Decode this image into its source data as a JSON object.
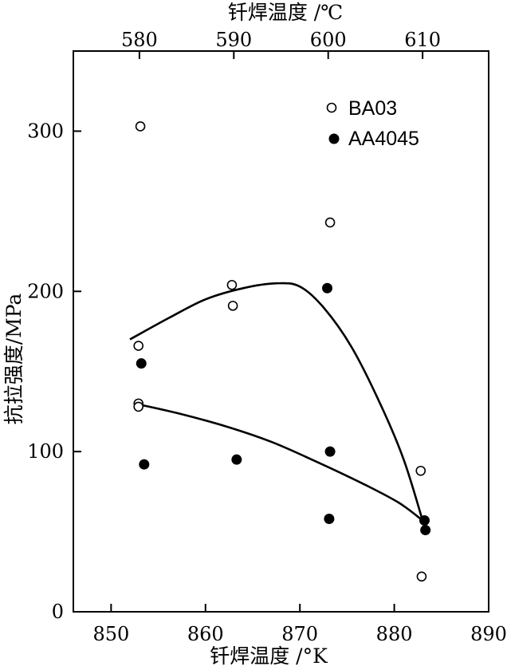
{
  "chart_data": {
    "type": "scatter",
    "title": "",
    "xlabel": "钎焊温度 /°K",
    "x2label": "钎焊温度 /℃",
    "ylabel": "抗拉强度/MPa",
    "xlim": [
      846,
      890
    ],
    "ylim": [
      0,
      350
    ],
    "x_ticks": [
      850,
      860,
      870,
      880,
      890
    ],
    "x2_ticks": [
      {
        "label": "580",
        "x": 853
      },
      {
        "label": "590",
        "x": 863
      },
      {
        "label": "600",
        "x": 873
      },
      {
        "label": "610",
        "x": 883
      }
    ],
    "y_ticks": [
      0,
      100,
      200,
      300
    ],
    "grid": false,
    "legend": "top-right",
    "series": [
      {
        "name": "BA03",
        "marker": "open-circle",
        "points": [
          {
            "x": 853.1,
            "y": 303
          },
          {
            "x": 852.9,
            "y": 166
          },
          {
            "x": 852.9,
            "y": 130
          },
          {
            "x": 852.9,
            "y": 128
          },
          {
            "x": 862.8,
            "y": 204
          },
          {
            "x": 862.9,
            "y": 191
          },
          {
            "x": 873.2,
            "y": 243
          },
          {
            "x": 882.8,
            "y": 88
          },
          {
            "x": 882.9,
            "y": 22
          }
        ],
        "curve": [
          {
            "x": 852.0,
            "y": 170
          },
          {
            "x": 856.0,
            "y": 183
          },
          {
            "x": 860.0,
            "y": 195
          },
          {
            "x": 864.0,
            "y": 202
          },
          {
            "x": 867.5,
            "y": 205
          },
          {
            "x": 870.0,
            "y": 203
          },
          {
            "x": 872.5,
            "y": 190
          },
          {
            "x": 875.5,
            "y": 165
          },
          {
            "x": 878.5,
            "y": 130
          },
          {
            "x": 881.0,
            "y": 95
          },
          {
            "x": 883.0,
            "y": 57
          }
        ]
      },
      {
        "name": "AA4045",
        "marker": "filled-circle",
        "points": [
          {
            "x": 853.2,
            "y": 155
          },
          {
            "x": 853.5,
            "y": 92
          },
          {
            "x": 863.3,
            "y": 95
          },
          {
            "x": 872.9,
            "y": 202
          },
          {
            "x": 873.2,
            "y": 100
          },
          {
            "x": 873.1,
            "y": 58
          },
          {
            "x": 883.2,
            "y": 57
          },
          {
            "x": 883.3,
            "y": 51
          }
        ],
        "curve": [
          {
            "x": 852.5,
            "y": 130
          },
          {
            "x": 857.0,
            "y": 124
          },
          {
            "x": 862.0,
            "y": 116
          },
          {
            "x": 867.0,
            "y": 106
          },
          {
            "x": 872.0,
            "y": 93
          },
          {
            "x": 877.0,
            "y": 79
          },
          {
            "x": 880.5,
            "y": 68
          },
          {
            "x": 883.0,
            "y": 57
          }
        ]
      }
    ]
  },
  "colors": {
    "ink": "#000000",
    "background": "#ffffff"
  }
}
